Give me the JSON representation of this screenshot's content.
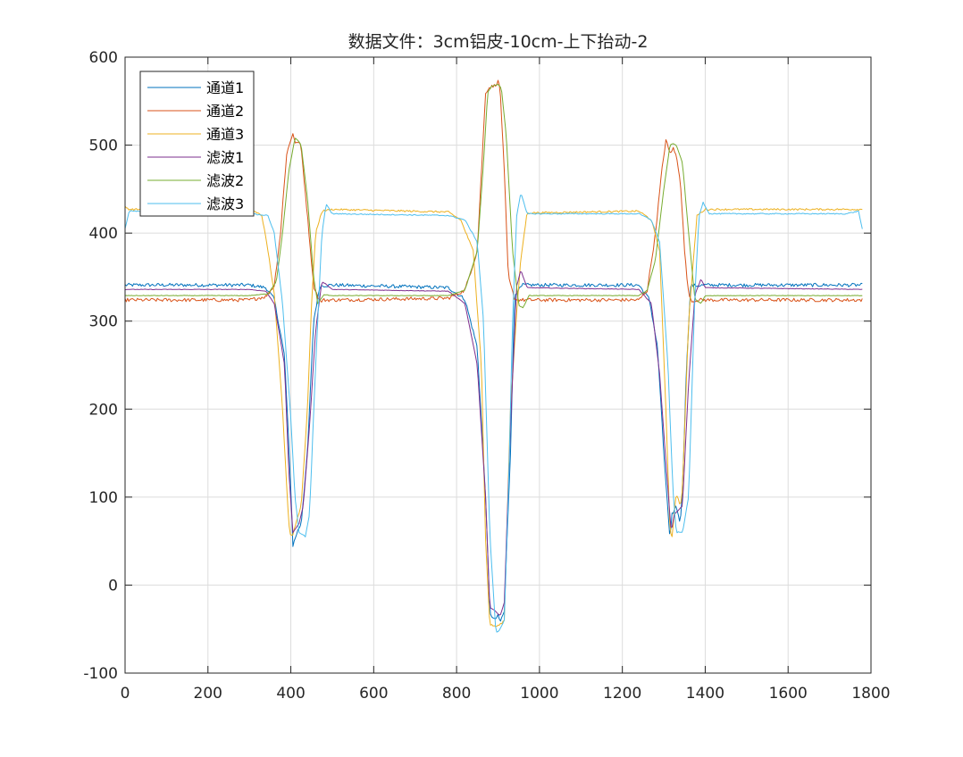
{
  "chart_data": {
    "type": "line",
    "title": "数据文件：3cm铝皮-10cm-上下抬动-2",
    "xlabel": "",
    "ylabel": "",
    "xlim": [
      0,
      1800
    ],
    "ylim": [
      -100,
      600
    ],
    "x_ticks": [
      "0",
      "200",
      "400",
      "600",
      "800",
      "1000",
      "1200",
      "1400",
      "1600",
      "1800"
    ],
    "y_ticks": [
      "600",
      "500",
      "400",
      "300",
      "200",
      "100",
      "0",
      "-100"
    ],
    "grid": true,
    "legend_position": "top-left",
    "series": [
      {
        "name": "通道1",
        "color": "#0072BD",
        "noise": 2.0,
        "x": [
          0,
          300,
          340,
          360,
          385,
          400,
          405,
          415,
          425,
          440,
          455,
          470,
          500,
          780,
          820,
          850,
          870,
          880,
          890,
          900,
          905,
          915,
          930,
          940,
          960,
          1240,
          1265,
          1285,
          1300,
          1315,
          1320,
          1330,
          1340,
          1345,
          1355,
          1365,
          1400,
          1780
        ],
        "y": [
          341,
          341,
          338,
          325,
          260,
          110,
          45,
          60,
          70,
          150,
          300,
          340,
          341,
          338,
          325,
          270,
          100,
          -30,
          -40,
          -35,
          -42,
          -30,
          150,
          330,
          341,
          341,
          325,
          270,
          150,
          50,
          80,
          90,
          70,
          110,
          250,
          340,
          341,
          341
        ]
      },
      {
        "name": "通道2",
        "color": "#D95319",
        "noise": 2.0,
        "x": [
          0,
          300,
          340,
          360,
          375,
          390,
          405,
          412,
          418,
          425,
          440,
          455,
          470,
          480,
          500,
          780,
          820,
          850,
          860,
          870,
          880,
          890,
          900,
          905,
          915,
          925,
          940,
          960,
          1240,
          1260,
          1280,
          1295,
          1305,
          1315,
          1322,
          1330,
          1340,
          1350,
          1360,
          1370,
          1380,
          1400,
          1780
        ],
        "y": [
          324,
          324,
          328,
          340,
          400,
          490,
          514,
          500,
          505,
          497,
          420,
          340,
          322,
          324,
          324,
          326,
          335,
          380,
          470,
          560,
          566,
          567,
          572,
          565,
          470,
          350,
          325,
          324,
          324,
          335,
          400,
          470,
          506,
          490,
          497,
          488,
          460,
          380,
          330,
          322,
          324,
          324,
          324
        ]
      },
      {
        "name": "通道3",
        "color": "#EDB120",
        "noise": 1.0,
        "x": [
          0,
          10,
          300,
          330,
          345,
          360,
          380,
          395,
          400,
          405,
          415,
          425,
          440,
          450,
          460,
          475,
          500,
          780,
          810,
          840,
          860,
          870,
          880,
          895,
          905,
          915,
          930,
          945,
          955,
          970,
          1240,
          1270,
          1290,
          1305,
          1315,
          1320,
          1330,
          1340,
          1345,
          1360,
          1380,
          1400,
          1780
        ],
        "y": [
          430,
          427,
          427,
          420,
          380,
          330,
          200,
          70,
          55,
          58,
          75,
          90,
          200,
          320,
          400,
          425,
          427,
          424,
          415,
          380,
          250,
          50,
          -45,
          -47,
          -45,
          -40,
          200,
          310,
          370,
          423,
          425,
          415,
          380,
          200,
          60,
          55,
          105,
          90,
          110,
          300,
          420,
          427,
          427
        ]
      },
      {
        "name": "滤波1",
        "color": "#7E2F8E",
        "noise": 0.3,
        "x": [
          0,
          300,
          340,
          360,
          385,
          395,
          405,
          420,
          430,
          445,
          460,
          475,
          485,
          500,
          780,
          820,
          850,
          870,
          880,
          895,
          905,
          915,
          930,
          945,
          955,
          970,
          1240,
          1270,
          1290,
          1305,
          1318,
          1325,
          1335,
          1345,
          1360,
          1375,
          1390,
          1400,
          1780
        ],
        "y": [
          336,
          336,
          334,
          320,
          250,
          130,
          60,
          70,
          90,
          180,
          290,
          345,
          342,
          336,
          334,
          320,
          250,
          100,
          -25,
          -30,
          -35,
          -20,
          180,
          340,
          358,
          338,
          336,
          320,
          240,
          140,
          60,
          80,
          85,
          90,
          230,
          330,
          348,
          338,
          336
        ]
      },
      {
        "name": "滤波2",
        "color": "#77AC30",
        "noise": 0.3,
        "x": [
          0,
          300,
          345,
          365,
          380,
          395,
          410,
          418,
          425,
          440,
          455,
          465,
          480,
          500,
          780,
          820,
          850,
          865,
          875,
          885,
          900,
          908,
          920,
          935,
          950,
          960,
          975,
          1240,
          1260,
          1280,
          1300,
          1315,
          1322,
          1330,
          1345,
          1360,
          1375,
          1390,
          1400,
          1780
        ],
        "y": [
          329,
          329,
          331,
          345,
          400,
          470,
          508,
          505,
          500,
          440,
          350,
          320,
          330,
          329,
          329,
          335,
          380,
          480,
          560,
          567,
          569,
          565,
          510,
          380,
          318,
          315,
          329,
          329,
          335,
          370,
          450,
          500,
          502,
          500,
          480,
          400,
          325,
          320,
          329,
          329
        ]
      },
      {
        "name": "滤波3",
        "color": "#4DBEEE",
        "noise": 0.6,
        "x": [
          0,
          10,
          300,
          345,
          360,
          380,
          400,
          410,
          420,
          435,
          445,
          460,
          475,
          485,
          500,
          780,
          820,
          850,
          865,
          880,
          895,
          905,
          915,
          925,
          935,
          945,
          955,
          970,
          1240,
          1270,
          1290,
          1310,
          1322,
          1330,
          1345,
          1360,
          1375,
          1385,
          1395,
          1410,
          1740,
          1770,
          1780
        ],
        "y": [
          405,
          425,
          422,
          420,
          400,
          320,
          190,
          100,
          60,
          55,
          80,
          250,
          400,
          433,
          422,
          420,
          415,
          390,
          300,
          60,
          -55,
          -50,
          -40,
          100,
          300,
          420,
          446,
          422,
          422,
          415,
          390,
          250,
          110,
          60,
          60,
          100,
          330,
          420,
          435,
          422,
          422,
          425,
          402
        ]
      }
    ]
  }
}
